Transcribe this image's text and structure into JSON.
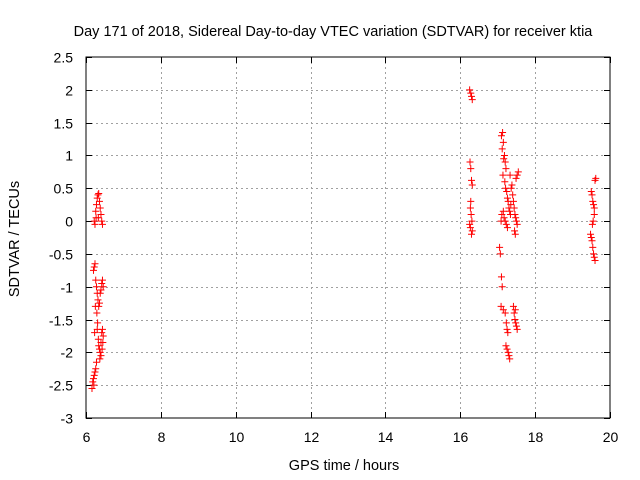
{
  "chart_data": {
    "type": "scatter",
    "title": "Day 171 of 2018, Sidereal Day-to-day VTEC variation (SDTVAR) for receiver ktia",
    "xlabel": "GPS time / hours",
    "ylabel": "SDTVAR / TECUs",
    "xlim": [
      6,
      20
    ],
    "ylim": [
      -3,
      2.5
    ],
    "grid": true,
    "marker": "+",
    "color": "#ff0000",
    "x_ticks": [
      6,
      8,
      10,
      12,
      14,
      16,
      18,
      20
    ],
    "x_tick_labels": [
      "6",
      "8",
      "10",
      "12",
      "14",
      "16",
      "18",
      "20"
    ],
    "y_ticks": [
      -3,
      -2.5,
      -2,
      -1.5,
      -1,
      -0.5,
      0,
      0.5,
      1,
      1.5,
      2,
      2.5
    ],
    "y_tick_labels": [
      "-3",
      "-2.5",
      "-2",
      "-1.5",
      "-1",
      "-0.5",
      "0",
      "0.5",
      "1",
      "1.5",
      "2",
      "2.5"
    ],
    "series": [
      {
        "name": "SDTVAR",
        "points": [
          [
            6.22,
            0.0
          ],
          [
            6.24,
            -0.05
          ],
          [
            6.26,
            0.15
          ],
          [
            6.28,
            0.25
          ],
          [
            6.3,
            0.35
          ],
          [
            6.32,
            0.4
          ],
          [
            6.34,
            0.42
          ],
          [
            6.36,
            0.3
          ],
          [
            6.38,
            0.2
          ],
          [
            6.4,
            0.1
          ],
          [
            6.42,
            0.0
          ],
          [
            6.44,
            -0.05
          ],
          [
            6.33,
            0.05
          ],
          [
            6.27,
            0.05
          ],
          [
            6.2,
            -0.75
          ],
          [
            6.22,
            -0.7
          ],
          [
            6.24,
            -0.65
          ],
          [
            6.26,
            -0.9
          ],
          [
            6.28,
            -1.0
          ],
          [
            6.3,
            -1.1
          ],
          [
            6.32,
            -1.2
          ],
          [
            6.34,
            -1.3
          ],
          [
            6.36,
            -1.25
          ],
          [
            6.38,
            -1.1
          ],
          [
            6.4,
            -1.05
          ],
          [
            6.42,
            -0.95
          ],
          [
            6.44,
            -0.9
          ],
          [
            6.46,
            -1.0
          ],
          [
            6.25,
            -1.3
          ],
          [
            6.29,
            -1.4
          ],
          [
            6.31,
            -1.55
          ],
          [
            6.23,
            -1.7
          ],
          [
            6.3,
            -1.65
          ],
          [
            6.33,
            -1.8
          ],
          [
            6.36,
            -1.95
          ],
          [
            6.38,
            -2.0
          ],
          [
            6.4,
            -1.85
          ],
          [
            6.42,
            -1.7
          ],
          [
            6.44,
            -1.65
          ],
          [
            6.46,
            -1.75
          ],
          [
            6.45,
            -1.85
          ],
          [
            6.43,
            -1.95
          ],
          [
            6.4,
            -2.05
          ],
          [
            6.37,
            -2.1
          ],
          [
            6.34,
            -1.9
          ],
          [
            6.16,
            -2.55
          ],
          [
            6.18,
            -2.45
          ],
          [
            6.2,
            -2.4
          ],
          [
            6.22,
            -2.35
          ],
          [
            6.24,
            -2.3
          ],
          [
            6.26,
            -2.25
          ],
          [
            6.28,
            -2.15
          ],
          [
            6.21,
            -2.5
          ],
          [
            16.25,
            2.0
          ],
          [
            16.28,
            1.95
          ],
          [
            16.3,
            1.9
          ],
          [
            16.32,
            1.85
          ],
          [
            16.26,
            0.9
          ],
          [
            16.28,
            0.8
          ],
          [
            16.3,
            0.62
          ],
          [
            16.32,
            0.55
          ],
          [
            16.27,
            0.2
          ],
          [
            16.29,
            0.1
          ],
          [
            16.31,
            0.0
          ],
          [
            16.25,
            -0.05
          ],
          [
            16.27,
            -0.1
          ],
          [
            16.3,
            -0.2
          ],
          [
            16.32,
            -0.15
          ],
          [
            16.28,
            0.3
          ],
          [
            17.05,
            -0.4
          ],
          [
            17.07,
            -0.5
          ],
          [
            17.1,
            -0.85
          ],
          [
            17.12,
            -1.0
          ],
          [
            17.09,
            -1.3
          ],
          [
            17.15,
            -1.35
          ],
          [
            17.1,
            1.3
          ],
          [
            17.13,
            1.35
          ],
          [
            17.15,
            1.2
          ],
          [
            17.12,
            1.1
          ],
          [
            17.18,
            1.0
          ],
          [
            17.2,
            0.9
          ],
          [
            17.22,
            0.8
          ],
          [
            17.16,
            0.95
          ],
          [
            17.14,
            0.7
          ],
          [
            17.19,
            0.6
          ],
          [
            17.21,
            0.5
          ],
          [
            17.24,
            0.45
          ],
          [
            17.26,
            0.35
          ],
          [
            17.28,
            0.3
          ],
          [
            17.3,
            0.2
          ],
          [
            17.32,
            0.15
          ],
          [
            17.34,
            0.1
          ],
          [
            17.17,
            0.05
          ],
          [
            17.2,
            0.0
          ],
          [
            17.23,
            -0.05
          ],
          [
            17.26,
            -0.1
          ],
          [
            17.15,
            0.15
          ],
          [
            17.11,
            0.1
          ],
          [
            17.09,
            0.0
          ],
          [
            17.4,
            0.4
          ],
          [
            17.42,
            0.3
          ],
          [
            17.44,
            0.2
          ],
          [
            17.46,
            0.1
          ],
          [
            17.48,
            0.05
          ],
          [
            17.5,
            0.0
          ],
          [
            17.52,
            -0.05
          ],
          [
            17.45,
            -0.15
          ],
          [
            17.47,
            -0.2
          ],
          [
            17.36,
            0.5
          ],
          [
            17.38,
            0.55
          ],
          [
            17.55,
            0.75
          ],
          [
            17.52,
            0.7
          ],
          [
            17.49,
            0.65
          ],
          [
            17.33,
            0.7
          ],
          [
            17.35,
            0.25
          ],
          [
            17.2,
            -1.4
          ],
          [
            17.23,
            -1.55
          ],
          [
            17.25,
            -1.65
          ],
          [
            17.27,
            -1.7
          ],
          [
            17.22,
            -1.9
          ],
          [
            17.25,
            -1.95
          ],
          [
            17.28,
            -2.0
          ],
          [
            17.3,
            -2.05
          ],
          [
            17.32,
            -2.1
          ],
          [
            17.42,
            -1.3
          ],
          [
            17.44,
            -1.4
          ],
          [
            17.46,
            -1.5
          ],
          [
            17.48,
            -1.55
          ],
          [
            17.5,
            -1.6
          ],
          [
            17.52,
            -1.65
          ],
          [
            17.47,
            -1.35
          ],
          [
            19.5,
            0.45
          ],
          [
            19.52,
            0.4
          ],
          [
            19.54,
            0.3
          ],
          [
            19.56,
            0.25
          ],
          [
            19.58,
            0.2
          ],
          [
            19.6,
            0.62
          ],
          [
            19.62,
            0.65
          ],
          [
            19.58,
            0.1
          ],
          [
            19.55,
            0.0
          ],
          [
            19.48,
            -0.2
          ],
          [
            19.5,
            -0.25
          ],
          [
            19.52,
            -0.3
          ],
          [
            19.54,
            -0.4
          ],
          [
            19.56,
            -0.5
          ],
          [
            19.58,
            -0.55
          ],
          [
            19.6,
            -0.6
          ],
          [
            19.53,
            -0.05
          ]
        ]
      }
    ]
  }
}
